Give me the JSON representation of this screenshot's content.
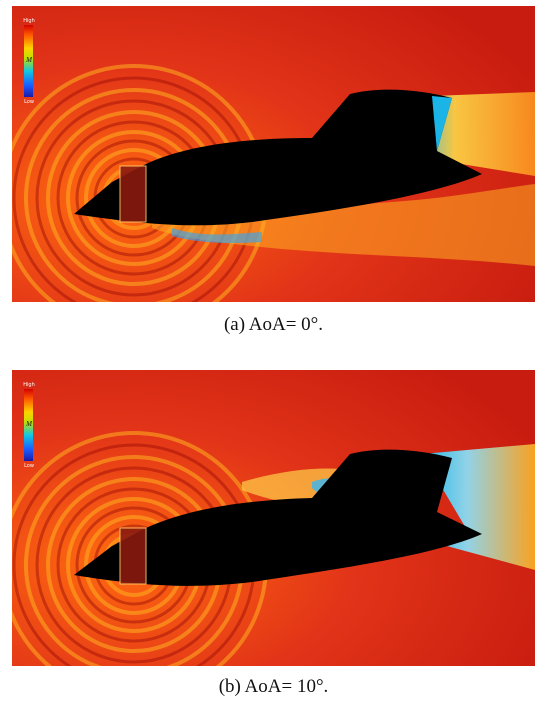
{
  "panels": [
    {
      "id": "a",
      "caption": "(a) AoA= 0°.",
      "colorbar": {
        "high": "High",
        "mid": "M",
        "low": "Low"
      }
    },
    {
      "id": "b",
      "caption": "(b) AoA= 10°.",
      "colorbar": {
        "high": "High",
        "mid": "M",
        "low": "Low"
      }
    }
  ],
  "colors": {
    "background_field": "#d92a16",
    "aircraft_body": "#000000",
    "high": "#d40000",
    "low": "#1a1aa8"
  }
}
